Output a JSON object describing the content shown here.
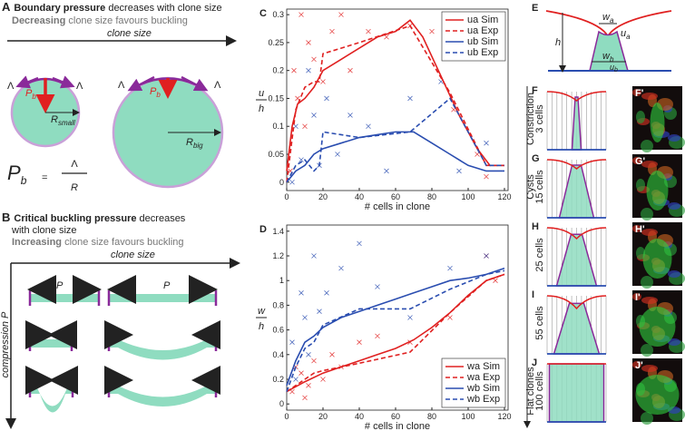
{
  "panel_a": {
    "letter": "A",
    "title_bold": "Boundary pressure",
    "title_rest": " decreases with clone size",
    "subtitle_bold": "Decreasing",
    "subtitle_rest": " clone size favours buckling",
    "axis": "clone size",
    "lambda": "Λ",
    "p": "P",
    "p_sub": "b",
    "r": "R",
    "r_small_sub": "small",
    "r_big_sub": "big",
    "equals": "="
  },
  "panel_b": {
    "letter": "B",
    "title_bold": "Critical buckling pressure",
    "title_rest": " decreases",
    "title_line2": "with clone size",
    "subtitle_bold": "Increasing",
    "subtitle_rest": " clone size favours buckling",
    "axis": "clone size",
    "y_axis": "compression P",
    "p": "P"
  },
  "panel_e": {
    "letter": "E",
    "w": "w",
    "u": "u",
    "sub_a": "a",
    "sub_b": "b",
    "h": "h"
  },
  "rows": [
    {
      "letter": "F",
      "prime": "F'",
      "labels": [
        "Constriction",
        "3 cells"
      ]
    },
    {
      "letter": "G",
      "prime": "G'",
      "labels": [
        "Cysts",
        "15 cells"
      ]
    },
    {
      "letter": "H",
      "prime": "H'",
      "labels": [
        "25 cells"
      ]
    },
    {
      "letter": "I",
      "prime": "I'",
      "labels": [
        "55 cells"
      ]
    },
    {
      "letter": "J",
      "prime": "J'",
      "labels": [
        "Flat clones",
        "100 cells"
      ]
    }
  ],
  "chart_data": [
    {
      "type": "line",
      "letter": "C",
      "xlabel": "# cells in clone",
      "ylabel_num": "u",
      "ylabel_den": "h",
      "xlim": [
        0,
        122
      ],
      "ylim": [
        -0.015,
        0.31
      ],
      "xticks": [
        0,
        20,
        40,
        60,
        80,
        100,
        120
      ],
      "yticks": [
        0,
        0.05,
        0.1,
        0.15,
        0.2,
        0.25,
        0.3
      ],
      "legend": "upper right",
      "series": [
        {
          "name": "ua Sim",
          "color": "#e02020",
          "dashed": false,
          "x": [
            0,
            3,
            6,
            10,
            15,
            20,
            30,
            40,
            50,
            60,
            68,
            75,
            85,
            95,
            105,
            112,
            120
          ],
          "values": [
            0.02,
            0.1,
            0.14,
            0.15,
            0.17,
            0.2,
            0.22,
            0.24,
            0.26,
            0.27,
            0.29,
            0.26,
            0.19,
            0.12,
            0.06,
            0.03,
            0.03
          ]
        },
        {
          "name": "ua Exp",
          "color": "#e02020",
          "dashed": true,
          "x": [
            0,
            5,
            10,
            15,
            18,
            20,
            40,
            68,
            90,
            110,
            120
          ],
          "values": [
            0.0,
            0.13,
            0.17,
            0.18,
            0.18,
            0.23,
            0.25,
            0.28,
            0.16,
            0.03,
            0.03
          ]
        },
        {
          "name": "ub Sim",
          "color": "#2a4db0",
          "dashed": false,
          "x": [
            0,
            5,
            10,
            15,
            20,
            30,
            40,
            50,
            60,
            70,
            80,
            90,
            100,
            110,
            120
          ],
          "values": [
            0.0,
            0.02,
            0.03,
            0.05,
            0.06,
            0.07,
            0.08,
            0.085,
            0.09,
            0.09,
            0.07,
            0.05,
            0.03,
            0.02,
            0.02
          ]
        },
        {
          "name": "ub Exp",
          "color": "#2a4db0",
          "dashed": true,
          "x": [
            0,
            5,
            10,
            15,
            18,
            20,
            40,
            68,
            90,
            110,
            120
          ],
          "values": [
            0.0,
            0.03,
            0.04,
            0.02,
            0.03,
            0.09,
            0.08,
            0.09,
            0.15,
            0.03,
            0.03
          ]
        }
      ],
      "points": [
        {
          "color": "#e02020",
          "x": [
            2,
            4,
            6,
            8,
            10,
            12,
            15,
            20,
            25,
            30,
            35,
            45,
            55,
            68,
            80,
            90,
            92,
            105,
            110
          ],
          "values": [
            0.02,
            0.2,
            0.15,
            0.3,
            0.1,
            0.25,
            0.22,
            0.18,
            0.27,
            0.3,
            0.2,
            0.27,
            0.26,
            0.28,
            0.27,
            0.25,
            0.13,
            0.05,
            0.01
          ]
        },
        {
          "color": "#2a4db0",
          "x": [
            3,
            5,
            8,
            12,
            15,
            18,
            22,
            28,
            35,
            45,
            55,
            68,
            85,
            95,
            110
          ],
          "values": [
            0.0,
            0.1,
            0.04,
            0.2,
            0.12,
            0.03,
            0.15,
            0.05,
            0.12,
            0.1,
            0.02,
            0.15,
            0.18,
            0.02,
            0.07
          ]
        }
      ]
    },
    {
      "type": "line",
      "letter": "D",
      "xlabel": "# cells in clone",
      "ylabel_num": "w",
      "ylabel_den": "h",
      "xlim": [
        0,
        122
      ],
      "ylim": [
        -0.05,
        1.45
      ],
      "xticks": [
        0,
        20,
        40,
        60,
        80,
        100,
        120
      ],
      "yticks": [
        0,
        0.2,
        0.4,
        0.6,
        0.8,
        1,
        1.2,
        1.4
      ],
      "legend": "lower right",
      "series": [
        {
          "name": "wa Sim",
          "color": "#e02020",
          "dashed": false,
          "x": [
            0,
            10,
            20,
            30,
            40,
            50,
            60,
            70,
            80,
            90,
            100,
            110,
            120
          ],
          "values": [
            0.1,
            0.18,
            0.25,
            0.3,
            0.35,
            0.4,
            0.45,
            0.52,
            0.62,
            0.74,
            0.88,
            1.0,
            1.05
          ]
        },
        {
          "name": "wa Exp",
          "color": "#e02020",
          "dashed": true,
          "x": [
            0,
            5,
            10,
            15,
            20,
            40,
            68,
            90,
            110,
            120
          ],
          "values": [
            0.1,
            0.15,
            0.2,
            0.25,
            0.27,
            0.33,
            0.42,
            0.74,
            1.0,
            1.05
          ]
        },
        {
          "name": "wb Sim",
          "color": "#2a4db0",
          "dashed": false,
          "x": [
            0,
            5,
            10,
            15,
            20,
            30,
            40,
            50,
            60,
            70,
            80,
            90,
            100,
            110,
            120
          ],
          "values": [
            0.15,
            0.35,
            0.5,
            0.55,
            0.62,
            0.7,
            0.75,
            0.8,
            0.85,
            0.9,
            0.95,
            1.0,
            1.02,
            1.05,
            1.1
          ]
        },
        {
          "name": "wb Exp",
          "color": "#2a4db0",
          "dashed": true,
          "x": [
            0,
            5,
            10,
            15,
            20,
            40,
            68,
            90,
            110,
            120
          ],
          "values": [
            0.1,
            0.3,
            0.45,
            0.5,
            0.64,
            0.77,
            0.77,
            0.93,
            1.05,
            1.08
          ]
        }
      ],
      "points": [
        {
          "color": "#e02020",
          "x": [
            3,
            5,
            8,
            10,
            12,
            15,
            20,
            25,
            30,
            40,
            50,
            68,
            90,
            110,
            115
          ],
          "values": [
            0.1,
            0.3,
            0.25,
            0.05,
            0.15,
            0.35,
            0.2,
            0.4,
            0.3,
            0.5,
            0.55,
            0.5,
            0.7,
            1.2,
            1.0
          ]
        },
        {
          "color": "#2a4db0",
          "x": [
            3,
            5,
            8,
            10,
            12,
            15,
            18,
            22,
            30,
            40,
            50,
            68,
            90,
            110
          ],
          "values": [
            0.5,
            0.2,
            0.9,
            0.7,
            0.4,
            1.2,
            0.75,
            0.9,
            1.1,
            1.3,
            0.95,
            0.7,
            1.1,
            1.2
          ]
        }
      ]
    }
  ]
}
